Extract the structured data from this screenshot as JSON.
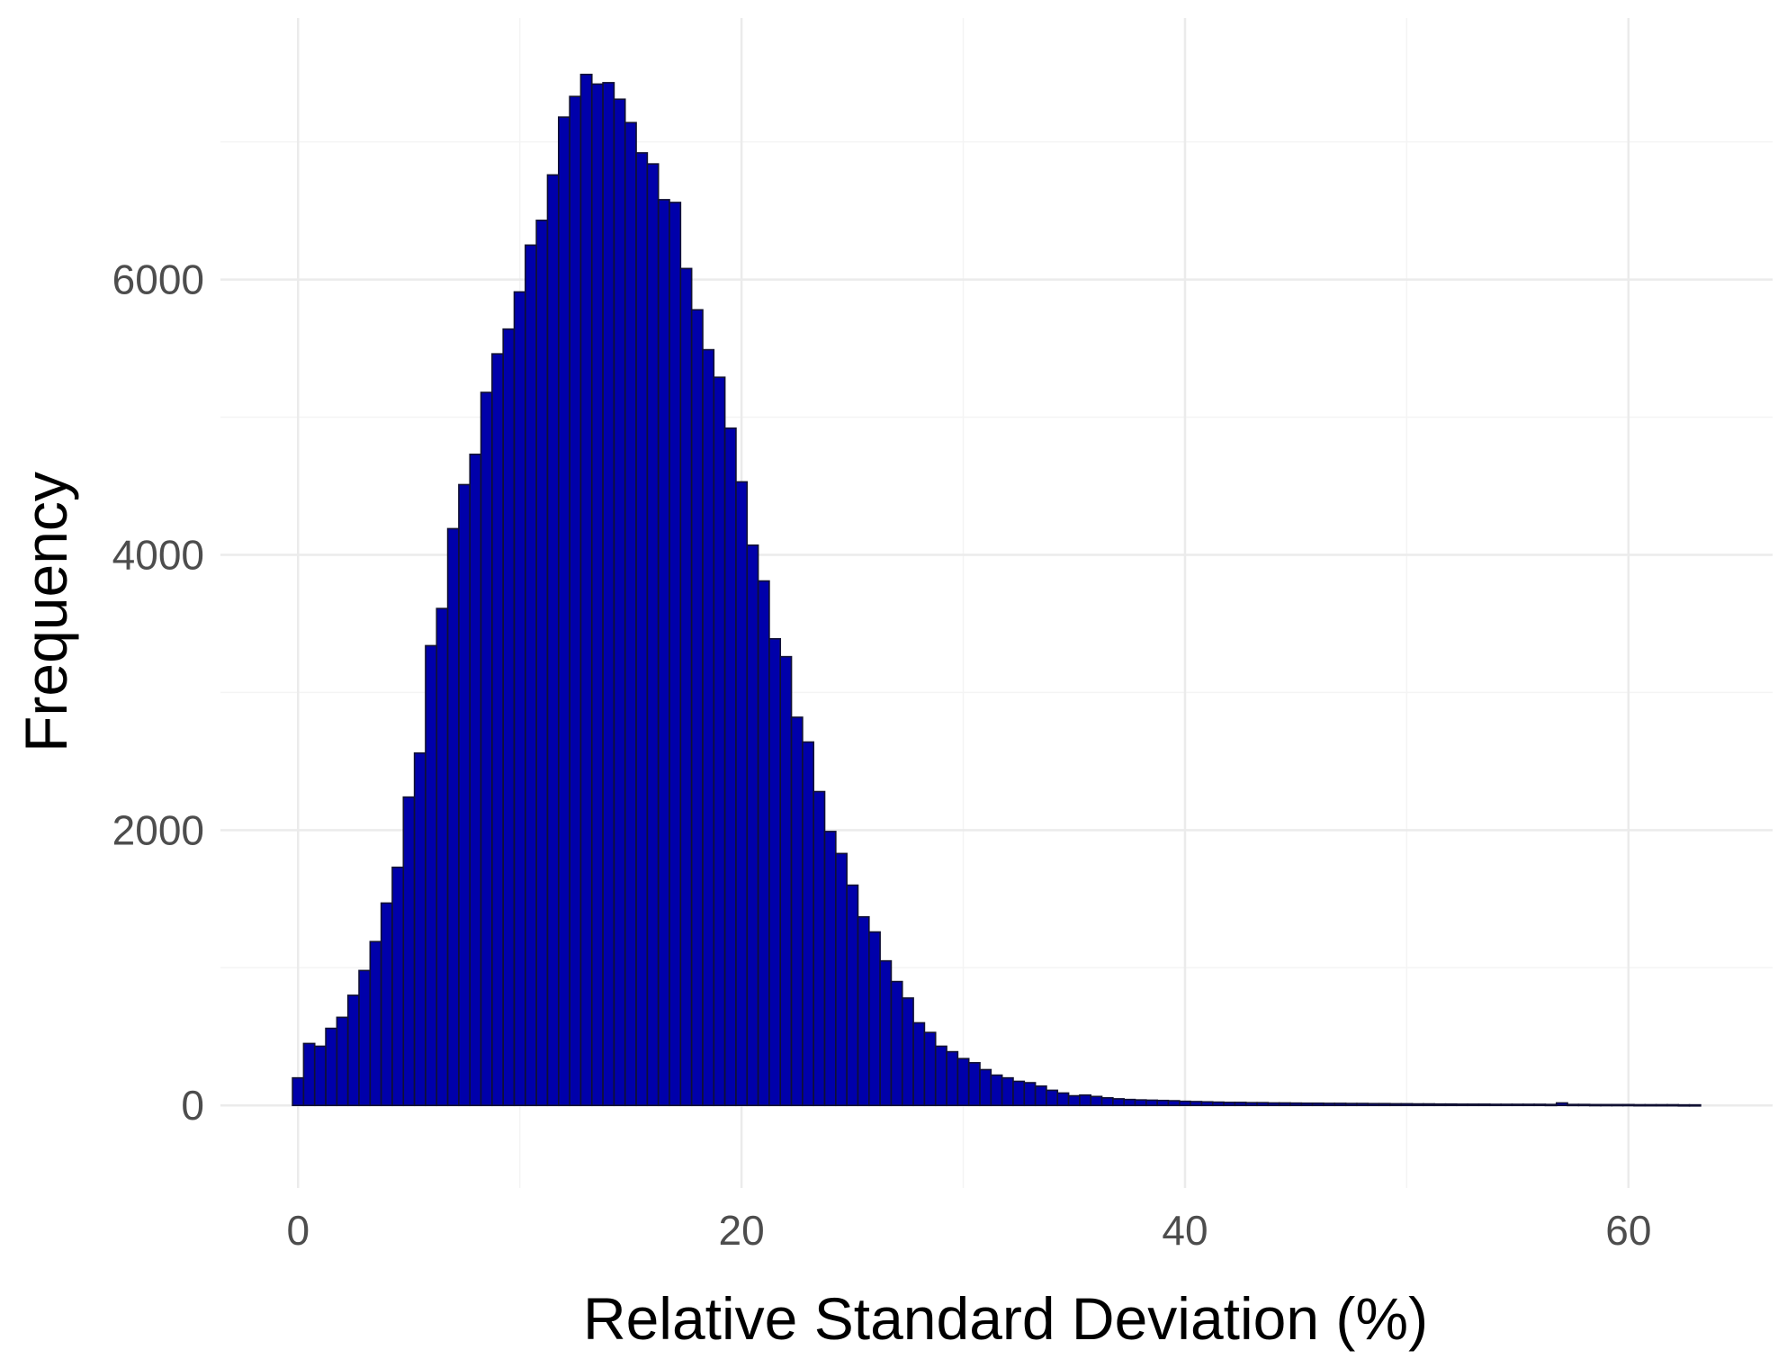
{
  "chart_data": {
    "type": "bar",
    "title": "",
    "xlabel": "Relative Standard Deviation (%)",
    "ylabel": "Frequency",
    "xlim": [
      -3.5,
      66.5
    ],
    "ylim": [
      -600,
      7900
    ],
    "x_ticks": [
      0,
      20,
      40,
      60
    ],
    "y_ticks": [
      0,
      2000,
      4000,
      6000
    ],
    "x_minor_gridlines": [
      10,
      30,
      50
    ],
    "y_minor_gridlines": [
      1000,
      3000,
      5000,
      7000
    ],
    "grid": true,
    "bin_start": -0.25,
    "bin_width": 0.5,
    "bar_color": "#0000aa",
    "bar_edge_color": "#111133",
    "values": [
      200,
      450,
      430,
      560,
      640,
      800,
      980,
      1190,
      1470,
      1730,
      2240,
      2560,
      3340,
      3610,
      4190,
      4510,
      4730,
      5180,
      5460,
      5640,
      5910,
      6250,
      6430,
      6760,
      7180,
      7330,
      7490,
      7420,
      7430,
      7310,
      7140,
      6920,
      6840,
      6580,
      6560,
      6080,
      5780,
      5490,
      5290,
      4920,
      4530,
      4070,
      3810,
      3390,
      3260,
      2820,
      2640,
      2280,
      1990,
      1830,
      1600,
      1370,
      1260,
      1050,
      900,
      780,
      600,
      530,
      430,
      390,
      340,
      310,
      260,
      220,
      200,
      175,
      165,
      140,
      110,
      90,
      70,
      75,
      65,
      55,
      48,
      43,
      40,
      38,
      36,
      34,
      30,
      28,
      26,
      24,
      22,
      22,
      20,
      20,
      18,
      18,
      17,
      16,
      16,
      15,
      15,
      14,
      14,
      13,
      13,
      12,
      12,
      11,
      11,
      10,
      10,
      9,
      9,
      9,
      8,
      8,
      8,
      8,
      8,
      7,
      18,
      7,
      7,
      6,
      6,
      6,
      6,
      5,
      5,
      5,
      5,
      4,
      4
    ]
  }
}
